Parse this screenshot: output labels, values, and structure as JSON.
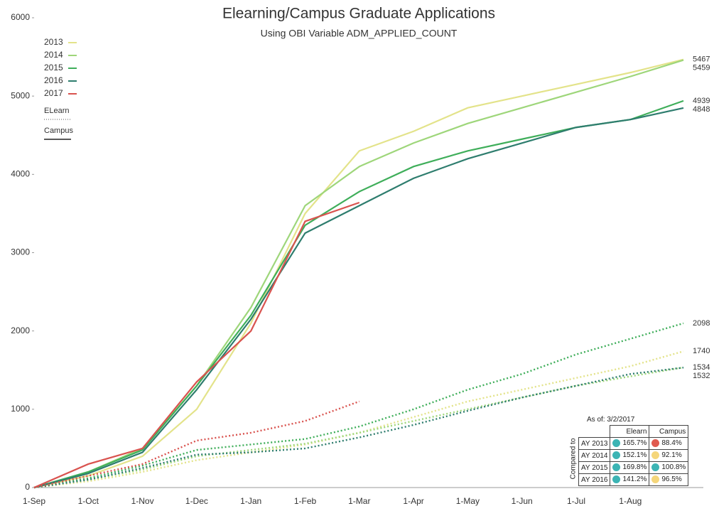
{
  "chart_data": {
    "type": "line",
    "title": "Elearning/Campus Graduate Applications",
    "subtitle": "Using OBI Variable ADM_APPLIED_COUNT",
    "categories": [
      "1-Sep",
      "1-Oct",
      "1-Nov",
      "1-Dec",
      "1-Jan",
      "1-Feb",
      "1-Mar",
      "1-Apr",
      "1-May",
      "1-Jun",
      "1-Jul",
      "1-Aug",
      null
    ],
    "ylim": [
      0,
      6000
    ],
    "yticks": [
      0,
      1000,
      2000,
      3000,
      4000,
      5000,
      6000
    ],
    "legend_styles": {
      "elearn": "ELearn",
      "campus": "Campus"
    },
    "series": [
      {
        "name": "2013",
        "color": "#e3e38a",
        "campus": [
          0,
          150,
          400,
          1000,
          2100,
          3500,
          4300,
          4550,
          4850,
          5000,
          5150,
          5300,
          5467
        ],
        "elearn": [
          0,
          80,
          200,
          350,
          450,
          550,
          700,
          900,
          1100,
          1250,
          1400,
          1550,
          1740
        ]
      },
      {
        "name": "2014",
        "color": "#9ed67a",
        "campus": [
          0,
          200,
          500,
          1300,
          2300,
          3600,
          4100,
          4400,
          4650,
          4850,
          5050,
          5250,
          5459
        ],
        "elearn": [
          0,
          100,
          230,
          400,
          480,
          560,
          700,
          850,
          1000,
          1150,
          1300,
          1420,
          1534
        ]
      },
      {
        "name": "2015",
        "color": "#3fae5a",
        "campus": [
          0,
          200,
          480,
          1300,
          2200,
          3350,
          3780,
          4100,
          4300,
          4450,
          4600,
          4700,
          4939
        ],
        "elearn": [
          0,
          120,
          280,
          480,
          550,
          620,
          780,
          1000,
          1250,
          1450,
          1700,
          1900,
          2098
        ]
      },
      {
        "name": "2016",
        "color": "#2e7d6e",
        "campus": [
          0,
          180,
          450,
          1250,
          2150,
          3250,
          3600,
          3950,
          4200,
          4400,
          4600,
          4700,
          4848
        ],
        "elearn": [
          0,
          100,
          250,
          420,
          450,
          500,
          640,
          800,
          980,
          1150,
          1300,
          1450,
          1532
        ]
      },
      {
        "name": "2017",
        "color": "#d9534f",
        "campus": [
          0,
          300,
          500,
          1350,
          2000,
          3400,
          3640,
          null,
          null,
          null,
          null,
          null,
          null
        ],
        "elearn": [
          0,
          150,
          300,
          600,
          700,
          850,
          1100,
          null,
          null,
          null,
          null,
          null,
          null
        ]
      }
    ],
    "table": {
      "as_of": "As of:",
      "date": "3/2/2017",
      "side": "Compared to",
      "headers": [
        "Elearn",
        "Campus"
      ],
      "rows": [
        {
          "label": "AY 2013",
          "elearn": "165.7%",
          "elearn_color": "#3cb4b4",
          "campus": "88.4%",
          "campus_color": "#e05a4f"
        },
        {
          "label": "AY 2014",
          "elearn": "152.1%",
          "elearn_color": "#3cb4b4",
          "campus": "92.1%",
          "campus_color": "#f5d67a"
        },
        {
          "label": "AY 2015",
          "elearn": "169.8%",
          "elearn_color": "#3cb4b4",
          "campus": "100.8%",
          "campus_color": "#3cb4b4"
        },
        {
          "label": "AY 2016",
          "elearn": "141.2%",
          "elearn_color": "#3cb4b4",
          "campus": "96.5%",
          "campus_color": "#f5d67a"
        }
      ]
    }
  }
}
